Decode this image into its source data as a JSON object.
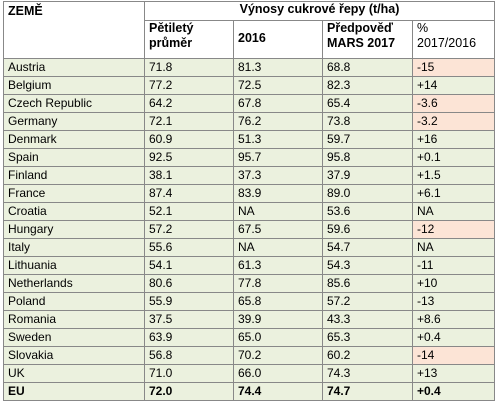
{
  "table": {
    "title": "Výnosy cukrové řepy (t/ha)",
    "header": [
      "ZEMĚ",
      "Pětiletý průměr",
      "2016",
      "Předpověď MARS 2017",
      "% 2017/2016"
    ],
    "rows": [
      [
        "Austria",
        "71.8",
        "81.3",
        "68.8",
        "-15"
      ],
      [
        "Belgium",
        "77.2",
        "72.5",
        "82.3",
        "+14"
      ],
      [
        "Czech Republic",
        "64.2",
        "67.8",
        "65.4",
        "-3.6"
      ],
      [
        "Germany",
        "72.1",
        "76.2",
        "73.8",
        "-3.2"
      ],
      [
        "Denmark",
        "60.9",
        "51.3",
        "59.7",
        "+16"
      ],
      [
        "Spain",
        "92.5",
        "95.7",
        "95.8",
        "+0.1"
      ],
      [
        "Finland",
        "38.1",
        "37.3",
        "37.9",
        "+1.5"
      ],
      [
        "France",
        "87.4",
        "83.9",
        "89.0",
        "+6.1"
      ],
      [
        "Croatia",
        "52.1",
        "NA",
        "53.6",
        "NA"
      ],
      [
        "Hungary",
        "57.2",
        "67.5",
        "59.6",
        "-12"
      ],
      [
        "Italy",
        "55.6",
        "NA",
        "54.7",
        "NA"
      ],
      [
        "Lithuania",
        "54.1",
        "61.3",
        "54.3",
        "-11"
      ],
      [
        "Netherlands",
        "80.6",
        "77.8",
        "85.6",
        "+10"
      ],
      [
        "Poland",
        "55.9",
        "65.8",
        "57.2",
        "-13"
      ],
      [
        "Romania",
        "37.5",
        "39.9",
        "43.3",
        "+8.6"
      ],
      [
        "Sweden",
        "63.9",
        "65.0",
        "65.3",
        "+0.4"
      ],
      [
        "Slovakia",
        "56.8",
        "70.2",
        "60.2",
        "-14"
      ],
      [
        "UK",
        "71.0",
        "66.0",
        "74.3",
        "+13"
      ],
      [
        "EU",
        "72.0",
        "74.4",
        "74.7",
        "+0.4"
      ]
    ],
    "row_color": "#ebf1de",
    "highlight_color": "#fce4d6",
    "highlighted_rows": [
      0,
      2,
      3,
      9,
      16
    ],
    "bold_rows": [
      18
    ]
  }
}
